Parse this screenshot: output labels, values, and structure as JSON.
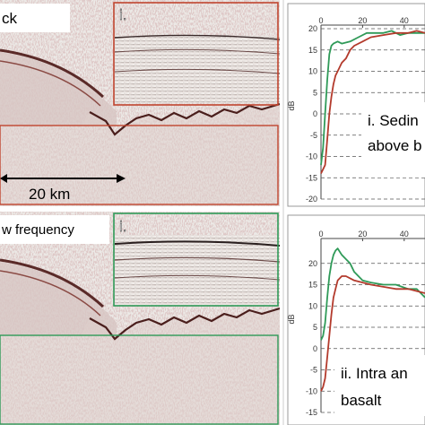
{
  "top_panel": {
    "corner_label": "ck",
    "section_label": "i.",
    "scale_label": "20 km",
    "colors": {
      "box": "#c0452f"
    }
  },
  "bottom_panel": {
    "corner_label": "w frequency",
    "section_label": "i.",
    "colors": {
      "box": "#2f9a58"
    }
  },
  "chart_data": [
    {
      "type": "line",
      "ylabel": "dB",
      "ylim": [
        -20,
        20
      ],
      "xlim": [
        0,
        50
      ],
      "x_ticks": [
        "0",
        "20",
        "40"
      ],
      "y_ticks": [
        "20",
        "15",
        "10",
        "5",
        "0",
        "-5",
        "-10",
        "-15",
        "-20"
      ],
      "grid": "dashed horizontal",
      "annotation": [
        "i. Sedin",
        "above b"
      ],
      "series": [
        {
          "color": "#2f9a58",
          "x": [
            0,
            1,
            2,
            3,
            4,
            5,
            6,
            8,
            10,
            14,
            18,
            22,
            26,
            30,
            34,
            38,
            42,
            46,
            50
          ],
          "y": [
            -12,
            -8,
            0,
            8,
            14,
            16,
            16.5,
            17,
            16.5,
            17,
            18,
            19,
            19,
            19,
            19.5,
            18.5,
            19,
            19,
            19
          ]
        },
        {
          "color": "#b33a2c",
          "x": [
            0,
            1,
            2,
            3,
            4,
            5,
            6,
            7,
            8,
            10,
            12,
            14,
            16,
            20,
            24,
            30,
            36,
            42,
            46,
            50
          ],
          "y": [
            -14,
            -13,
            -12,
            -6,
            0,
            4,
            7,
            9,
            10,
            12,
            13,
            15,
            16,
            17,
            18,
            18.5,
            19,
            19,
            19.5,
            19
          ]
        }
      ]
    },
    {
      "type": "line",
      "ylabel": "dB",
      "ylim": [
        -15,
        25
      ],
      "xlim": [
        0,
        50
      ],
      "x_ticks": [
        "0",
        "20",
        "40"
      ],
      "y_ticks": [
        "20",
        "15",
        "10",
        "5",
        "0",
        "-5",
        "-10",
        "-15"
      ],
      "grid": "dashed horizontal",
      "annotation": [
        "ii. Intra an",
        "basalt"
      ],
      "series": [
        {
          "color": "#2f9a58",
          "x": [
            0,
            1,
            2,
            3,
            4,
            5,
            6,
            7,
            8,
            10,
            12,
            14,
            16,
            20,
            24,
            30,
            36,
            42,
            46,
            50
          ],
          "y": [
            2,
            3,
            6,
            12,
            17,
            20,
            22,
            23,
            23.5,
            22,
            21,
            20,
            18,
            16,
            15.5,
            15,
            15,
            14,
            14,
            12
          ]
        },
        {
          "color": "#b33a2c",
          "x": [
            0,
            1,
            2,
            3,
            4,
            5,
            6,
            7,
            8,
            10,
            12,
            14,
            16,
            20,
            24,
            30,
            36,
            42,
            46,
            50
          ],
          "y": [
            -10,
            -9,
            -7,
            -2,
            3,
            8,
            12,
            14,
            16,
            17,
            17,
            16.5,
            16,
            15.5,
            15,
            14.5,
            14,
            14,
            13.5,
            13
          ]
        }
      ]
    }
  ]
}
